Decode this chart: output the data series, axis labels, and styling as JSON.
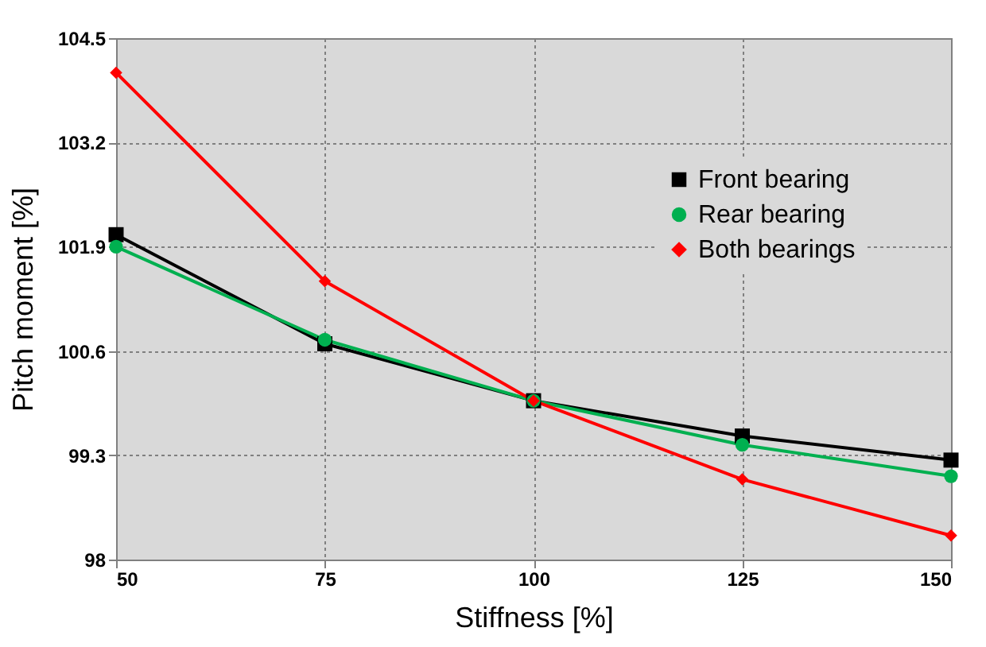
{
  "chart_data": {
    "type": "line",
    "xlabel": "Stiffness [%]",
    "ylabel": "Pitch moment [%]",
    "x": [
      50,
      75,
      100,
      125,
      150
    ],
    "series": [
      {
        "name": "Front bearing",
        "color": "#000000",
        "marker": "square",
        "values": [
          102.05,
          100.69,
          99.98,
          99.54,
          99.24
        ]
      },
      {
        "name": "Rear bearing",
        "color": "#00b050",
        "marker": "circle",
        "values": [
          101.9,
          100.74,
          99.98,
          99.43,
          99.04
        ]
      },
      {
        "name": "Both bearings",
        "color": "#ff0000",
        "marker": "diamond",
        "values": [
          104.07,
          101.47,
          99.98,
          99.0,
          98.3
        ]
      }
    ],
    "xlim": [
      50,
      150
    ],
    "xticks": [
      50,
      75,
      100,
      125,
      150
    ],
    "ylim": [
      98,
      104.5
    ],
    "yticks": [
      98,
      99.3,
      100.6,
      101.9,
      103.2,
      104.5
    ],
    "grid": true,
    "legend": "top right",
    "line_style": "solid"
  }
}
